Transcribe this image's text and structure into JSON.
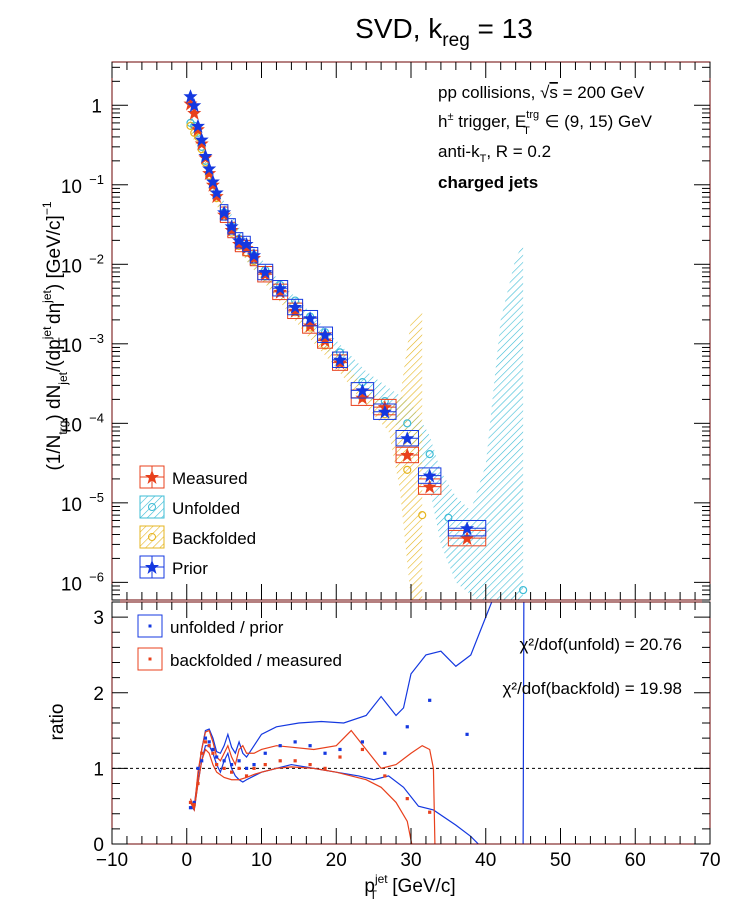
{
  "title": {
    "main": "SVD, k",
    "sub": "reg",
    "tail": " = 13"
  },
  "info": {
    "line1_pre": "pp collisions, ",
    "line1_sqrt": "√",
    "line1_s": "s",
    "line1_post": " = 200 GeV",
    "line2_h": "h",
    "line2_pm": "±",
    "line2_mid": " trigger, E",
    "line2_sup": "trg",
    "line2_sub": "T",
    "line2_post": " ∈ (9, 15) GeV",
    "line3_pre": "anti-k",
    "line3_sub": "T",
    "line3_post": ", R = 0.2",
    "line4": "charged jets"
  },
  "colors": {
    "measured": "#e8401c",
    "unfolded": "#3dbcd6",
    "backfolded": "#e6b520",
    "prior": "#1438e0",
    "ratio_unf": "#1438e0",
    "ratio_back": "#e8401c",
    "frame": "#6b0000"
  },
  "chart_data": [
    {
      "type": "scatter",
      "id": "top",
      "ylabel": "(1/N_trg) dN_jet/(dp_T^jet dη^jet) [GeV/c]^-1",
      "yscale": "log",
      "xlim": [
        -10,
        70
      ],
      "ylim": [
        6e-07,
        3.5
      ],
      "yticks": [
        "10⁻⁶",
        "10⁻⁵",
        "10⁻⁴",
        "10⁻³",
        "10⁻²",
        "10⁻¹",
        "1"
      ],
      "legend_position": "bottom-left",
      "series": [
        {
          "name": "Measured",
          "x": [
            0.5,
            1,
            1.5,
            2,
            2.5,
            3,
            3.5,
            4,
            5,
            6,
            7,
            8,
            9,
            10.5,
            12.5,
            14.5,
            16.5,
            18.5,
            20.5,
            23.5,
            26.5,
            29.5,
            32.5,
            37.5
          ],
          "y": [
            1.05,
            0.8,
            0.5,
            0.33,
            0.22,
            0.14,
            0.1,
            0.072,
            0.042,
            0.027,
            0.018,
            0.016,
            0.012,
            0.0075,
            0.0045,
            0.0026,
            0.0017,
            0.0011,
            0.00058,
            0.00021,
            0.00016,
            4e-05,
            1.6e-05,
            3.6e-06
          ]
        },
        {
          "name": "Unfolded",
          "x": [
            0.5,
            1,
            1.5,
            2,
            2.5,
            3,
            3.5,
            4,
            5,
            6,
            7,
            8,
            9,
            10.5,
            12.5,
            14.5,
            16.5,
            18.5,
            20.5,
            23.5,
            26.5,
            29.5,
            32.5,
            35,
            37.5,
            45
          ],
          "y": [
            0.6,
            0.55,
            0.45,
            0.3,
            0.2,
            0.13,
            0.1,
            0.075,
            0.045,
            0.03,
            0.021,
            0.016,
            0.013,
            0.0085,
            0.0055,
            0.0035,
            0.0022,
            0.0014,
            0.00078,
            0.00033,
            0.00019,
            0.0001,
            4.1e-05,
            6.5e-06,
            4.2e-06,
            8e-07
          ]
        },
        {
          "name": "Backfolded",
          "x": [
            0.5,
            1,
            1.5,
            2,
            2.5,
            3,
            3.5,
            4,
            5,
            6,
            7,
            8,
            9,
            10.5,
            12.5,
            14.5,
            16.5,
            18.5,
            20.5,
            23.5,
            26.5,
            29.5,
            31.5
          ],
          "y": [
            0.55,
            0.45,
            0.4,
            0.28,
            0.19,
            0.13,
            0.09,
            0.068,
            0.04,
            0.025,
            0.017,
            0.014,
            0.011,
            0.007,
            0.0045,
            0.0025,
            0.0016,
            0.00095,
            0.00058,
            0.00021,
            0.00013,
            2.6e-05,
            7e-06
          ]
        },
        {
          "name": "Prior",
          "x": [
            0.5,
            1,
            1.5,
            2,
            2.5,
            3,
            3.5,
            4,
            5,
            6,
            7,
            8,
            9,
            10.5,
            12.5,
            14.5,
            16.5,
            18.5,
            20.5,
            23.5,
            26.5,
            29.5,
            32.5,
            37.5
          ],
          "y": [
            1.3,
            1.0,
            0.55,
            0.37,
            0.23,
            0.16,
            0.11,
            0.08,
            0.045,
            0.03,
            0.02,
            0.018,
            0.013,
            0.008,
            0.005,
            0.0029,
            0.0021,
            0.0013,
            0.00063,
            0.00026,
            0.00014,
            6.5e-05,
            2.2e-05,
            4.8e-06
          ]
        }
      ]
    },
    {
      "type": "scatter",
      "id": "bottom",
      "xlabel": "p_T^jet [GeV/c]",
      "ylabel": "ratio",
      "xlim": [
        -10,
        70
      ],
      "ylim": [
        0,
        3.2
      ],
      "xticks": [
        -10,
        0,
        10,
        20,
        30,
        40,
        50,
        60,
        70
      ],
      "yticks": [
        0,
        1,
        2,
        3
      ],
      "reference_line": 1,
      "legend_position": "top-left",
      "annotations": [
        "χ²/dof(unfold) = 20.76",
        "χ²/dof(backfold) = 19.98"
      ],
      "series": [
        {
          "name": "unfolded / prior",
          "x": [
            0.5,
            1,
            1.5,
            2,
            2.5,
            3,
            3.5,
            4,
            5,
            6,
            7,
            8,
            9,
            10.5,
            12.5,
            14.5,
            16.5,
            18.5,
            20.5,
            23.5,
            26.5,
            29.5,
            32.5,
            37.5
          ],
          "y": [
            0.48,
            0.55,
            1.0,
            1.1,
            1.4,
            1.35,
            1.25,
            1.15,
            1.1,
            1.05,
            1.1,
            1.0,
            1.05,
            1.2,
            1.3,
            1.35,
            1.3,
            1.2,
            1.25,
            1.35,
            1.2,
            1.55,
            1.9,
            1.45
          ]
        },
        {
          "name": "backfolded / measured",
          "x": [
            0.5,
            1,
            1.5,
            2,
            2.5,
            3,
            3.5,
            4,
            5,
            6,
            7,
            8,
            9,
            10.5,
            12.5,
            14.5,
            16.5,
            18.5,
            20.5,
            23.5,
            26.5,
            29.5,
            32.5
          ],
          "y": [
            0.55,
            0.52,
            0.8,
            1.2,
            1.35,
            1.3,
            1.2,
            1.05,
            1.0,
            0.95,
            1.0,
            0.9,
            1.0,
            1.05,
            1.1,
            1.1,
            1.05,
            1.0,
            1.15,
            1.25,
            0.9,
            0.6,
            0.42
          ]
        }
      ]
    }
  ],
  "legend_top": {
    "measured": "Measured",
    "unfolded": "Unfolded",
    "backfolded": "Backfolded",
    "prior": "Prior"
  },
  "legend_bottom": {
    "unf": "unfolded / prior",
    "back": "backfolded / measured"
  },
  "chi": {
    "unf": "χ²/dof(unfold) = 20.76",
    "back": "χ²/dof(backfold) = 19.98"
  },
  "axis": {
    "ytick_labels": {
      "one": "1",
      "m1": "−1",
      "m2": "−2",
      "m3": "−3",
      "m4": "−4",
      "m5": "−5",
      "m6": "−6",
      "base": "10"
    },
    "xtick_labels": [
      "−10",
      "0",
      "10",
      "20",
      "30",
      "40",
      "50",
      "60",
      "70"
    ],
    "rtick_labels": [
      "0",
      "1",
      "2",
      "3"
    ],
    "xlabel_p": "p",
    "xlabel_sup": "jet",
    "xlabel_sub": "T",
    "xlabel_post": " [GeV/c]",
    "ratio_label": "ratio",
    "ylabel_parts": {
      "a": "(1/N",
      "trg": "trg",
      "b": ") dN",
      "jet1": "jet",
      "c": "/(dp",
      "jet2": "jet",
      "T": "T",
      "d": " dη",
      "jet3": "jet",
      "e": ") [GeV/c]",
      "exp": "−1"
    }
  }
}
